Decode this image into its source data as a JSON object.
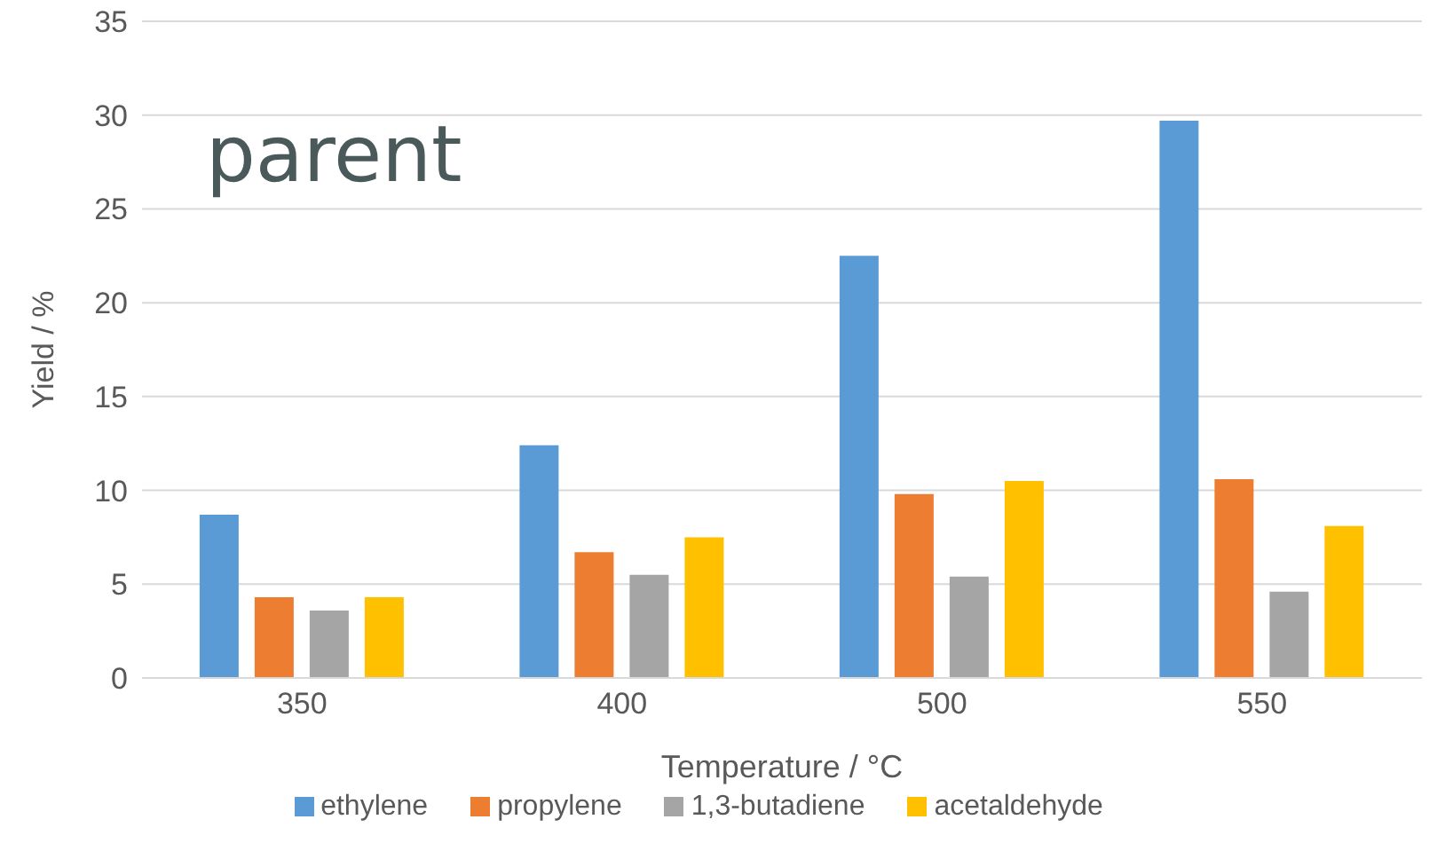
{
  "chart_data": {
    "type": "bar",
    "categories": [
      "350",
      "400",
      "500",
      "550"
    ],
    "xlabel": "Temperature / °C",
    "ylabel": "Yield / %",
    "annotations": [
      "parent"
    ],
    "ylim": [
      0,
      35
    ],
    "yticks": [
      0,
      5,
      10,
      15,
      20,
      25,
      30,
      35
    ],
    "grid": "y",
    "legend": "bottom",
    "series": [
      {
        "name": "ethylene",
        "color": "#5b9bd5",
        "values": [
          8.7,
          12.4,
          22.5,
          29.7
        ]
      },
      {
        "name": "propylene",
        "color": "#ed7d31",
        "values": [
          4.3,
          6.7,
          9.8,
          10.6
        ]
      },
      {
        "name": "1,3-butadiene",
        "color": "#a5a5a5",
        "values": [
          3.6,
          5.5,
          5.4,
          4.6
        ]
      },
      {
        "name": "acetaldehyde",
        "color": "#ffc000",
        "values": [
          4.3,
          7.5,
          10.5,
          8.1
        ]
      }
    ]
  }
}
